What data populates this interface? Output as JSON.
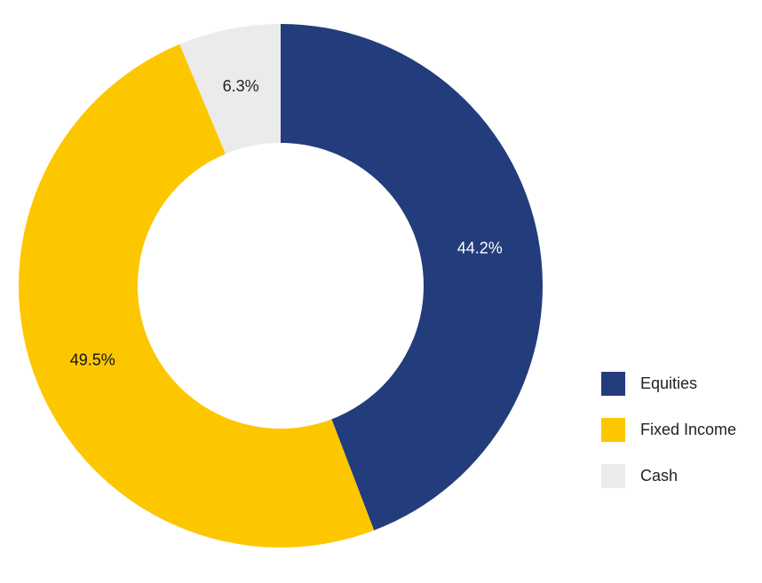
{
  "chart_data": {
    "type": "donut",
    "categories": [
      "Equities",
      "Fixed Income",
      "Cash"
    ],
    "values": [
      44.2,
      49.5,
      6.3
    ],
    "value_labels": [
      "44.2%",
      "49.5%",
      "6.3%"
    ],
    "colors": [
      "#233c7c",
      "#fdc700",
      "#ebebeb"
    ],
    "label_colors": [
      "#ffffff",
      "#111111",
      "#222222"
    ],
    "legend": "right"
  }
}
